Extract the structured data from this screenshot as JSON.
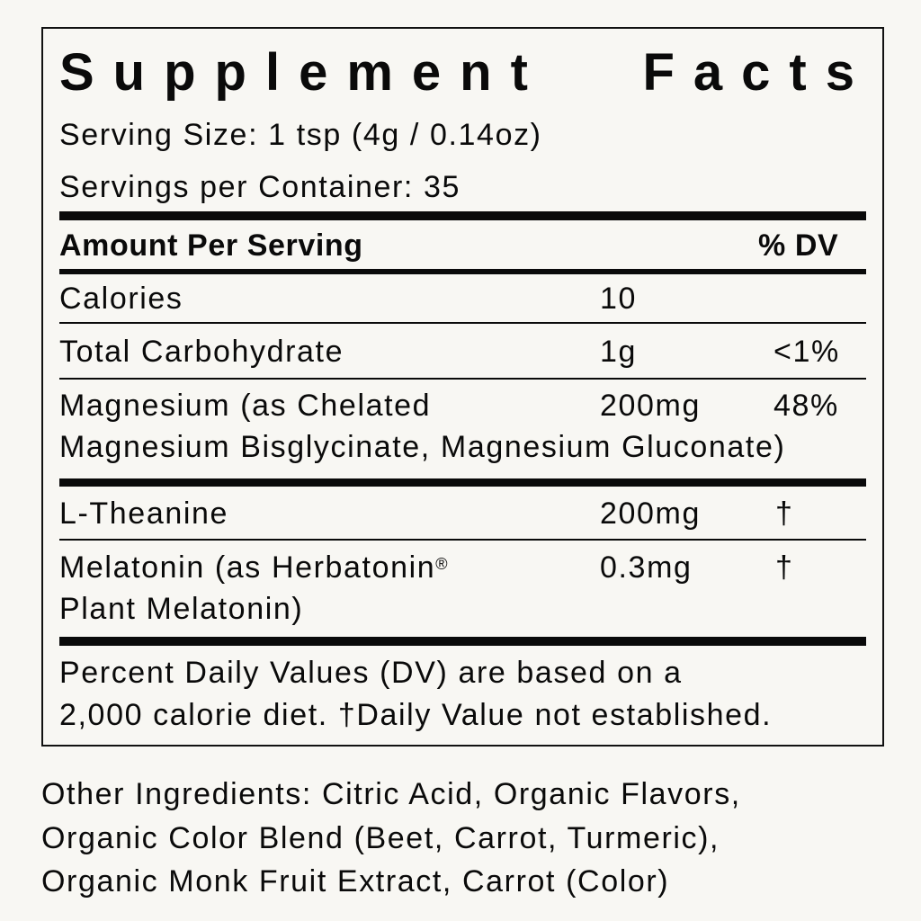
{
  "title": {
    "word1": "Supplement",
    "word2": "Facts"
  },
  "serving_size": "Serving Size: 1 tsp (4g / 0.14oz)",
  "servings_per_container": "Servings per Container: 35",
  "header": {
    "amount": "Amount Per Serving",
    "dv": "% DV"
  },
  "rows": [
    {
      "name": "Calories",
      "amount": "10",
      "dv": ""
    },
    {
      "name": "Total Carbohydrate",
      "amount": "1g",
      "dv": "<1%"
    },
    {
      "name": "Magnesium (as Chelated",
      "name2": "Magnesium Bisglycinate, Magnesium Gluconate)",
      "amount": "200mg",
      "dv": "48%"
    },
    {
      "name": "L-Theanine",
      "amount": "200mg",
      "dv": "†"
    },
    {
      "name": "Melatonin (as Herbatonin",
      "name_sup": "®",
      "name2": "Plant Melatonin)",
      "amount": "0.3mg",
      "dv": "†"
    }
  ],
  "footnote": {
    "line1": "Percent Daily Values (DV) are based on a",
    "line2": "2,000 calorie diet.  †Daily Value not established."
  },
  "other_ingredients": [
    "Other Ingredients: Citric Acid, Organic Flavors,",
    "Organic Color Blend (Beet, Carrot, Turmeric),",
    "Organic Monk Fruit Extract, Carrot (Color)"
  ]
}
